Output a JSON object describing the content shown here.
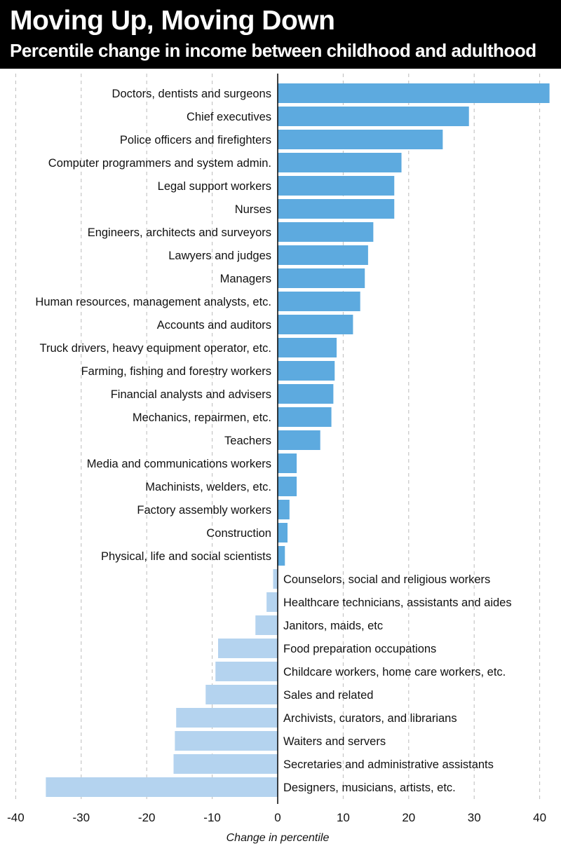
{
  "chart_data": {
    "type": "bar",
    "orientation": "horizontal",
    "title": "Moving Up, Moving Down",
    "subtitle": "Percentile change in income between childhood and adulthood",
    "xlabel": "Change in percentile",
    "ylabel": "",
    "xlim": [
      -40,
      42
    ],
    "xticks": [
      -40,
      -30,
      -20,
      -10,
      0,
      10,
      20,
      30,
      40
    ],
    "grid": "vertical dashed",
    "colors": {
      "positive": "#5DAADF",
      "negative": "#B4D3EF",
      "grid": "#bbbbbb",
      "axis": "#000000"
    },
    "categories": [
      "Doctors, dentists and surgeons",
      "Chief executives",
      "Police officers and firefighters",
      "Computer programmers and system admin.",
      "Legal support workers",
      "Nurses",
      "Engineers, architects and surveyors",
      "Lawyers and judges",
      "Managers",
      "Human resources, management analysts, etc.",
      "Accounts and auditors",
      "Truck drivers, heavy equipment operator, etc.",
      "Farming, fishing and forestry workers",
      "Financial analysts and advisers",
      "Mechanics, repairmen, etc.",
      "Teachers",
      "Media and communications workers",
      "Machinists, welders, etc.",
      "Factory assembly workers",
      "Construction",
      "Physical, life and social scientists",
      "Counselors, social and religious workers",
      "Healthcare technicians, assistants and aides",
      "Janitors, maids, etc",
      "Food preparation occupations",
      "Childcare workers, home care workers, etc.",
      "Sales and related",
      "Archivists, curators, and librarians",
      "Waiters and servers",
      "Secretaries and administrative assistants",
      "Designers, musicians, artists, etc."
    ],
    "values": [
      41.5,
      29.2,
      25.2,
      18.9,
      17.8,
      17.8,
      14.6,
      13.8,
      13.3,
      12.6,
      11.5,
      9.0,
      8.7,
      8.5,
      8.2,
      6.5,
      2.9,
      2.9,
      1.8,
      1.5,
      1.1,
      -0.7,
      -1.7,
      -3.4,
      -9.1,
      -9.5,
      -11.0,
      -15.5,
      -15.7,
      -15.9,
      -35.4
    ]
  }
}
